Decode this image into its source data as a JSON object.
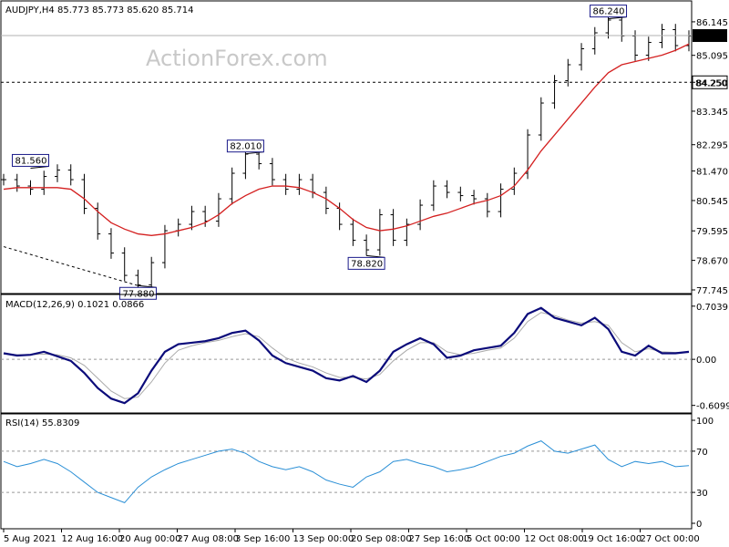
{
  "chart_data": {
    "type": "candlestick",
    "watermark": "ActionForex.com",
    "price_panel": {
      "header": "AUDJPY,H4  85.773 85.773 85.620 85.714",
      "ylim": [
        77.745,
        86.6
      ],
      "yticks": [
        "86.145",
        "85.095",
        "84.250",
        "83.345",
        "82.295",
        "81.470",
        "80.545",
        "79.595",
        "78.670",
        "77.745"
      ],
      "last_price": "85.714",
      "support_level": {
        "value": 84.25,
        "label": "84.250"
      },
      "callouts": [
        {
          "text": "81.560",
          "value": 81.56
        },
        {
          "text": "77.880",
          "value": 77.88
        },
        {
          "text": "82.010",
          "value": 82.01
        },
        {
          "text": "78.820",
          "value": 78.82
        },
        {
          "text": "86.240",
          "value": 86.24
        }
      ],
      "close": [
        81.2,
        81.0,
        80.9,
        81.3,
        81.5,
        81.2,
        80.3,
        79.5,
        78.9,
        78.2,
        77.9,
        78.6,
        79.6,
        79.8,
        80.2,
        79.9,
        80.6,
        81.4,
        82.0,
        81.7,
        81.2,
        80.9,
        81.2,
        80.8,
        80.3,
        79.8,
        79.3,
        79.0,
        80.1,
        79.3,
        79.8,
        80.4,
        81.0,
        80.8,
        80.7,
        80.6,
        80.2,
        80.9,
        81.4,
        82.6,
        83.6,
        84.3,
        84.8,
        85.3,
        85.8,
        86.2,
        85.7,
        85.1,
        85.5,
        85.9,
        85.4,
        85.7
      ],
      "ma": [
        80.9,
        80.95,
        80.95,
        80.95,
        80.95,
        80.9,
        80.6,
        80.2,
        79.85,
        79.65,
        79.5,
        79.45,
        79.5,
        79.6,
        79.7,
        79.85,
        80.1,
        80.45,
        80.7,
        80.9,
        81.0,
        81.0,
        80.95,
        80.8,
        80.6,
        80.3,
        79.95,
        79.7,
        79.6,
        79.65,
        79.75,
        79.9,
        80.05,
        80.15,
        80.3,
        80.45,
        80.55,
        80.7,
        81.0,
        81.5,
        82.1,
        82.6,
        83.1,
        83.6,
        84.1,
        84.55,
        84.8,
        84.9,
        85.0,
        85.1,
        85.25,
        85.45
      ],
      "trend_start": 79.1,
      "trend_end": 77.88
    },
    "macd_panel": {
      "header": "MACD(12,26,9) 0.1021 0.0866",
      "ylim": [
        -0.65,
        0.75
      ],
      "yticks": [
        "0.7039",
        "0.00",
        "-0.6099"
      ],
      "macd": [
        0.08,
        0.05,
        0.06,
        0.1,
        0.04,
        -0.02,
        -0.18,
        -0.38,
        -0.52,
        -0.58,
        -0.45,
        -0.15,
        0.1,
        0.2,
        0.22,
        0.24,
        0.28,
        0.35,
        0.38,
        0.25,
        0.05,
        -0.05,
        -0.1,
        -0.15,
        -0.25,
        -0.28,
        -0.22,
        -0.3,
        -0.15,
        0.1,
        0.2,
        0.28,
        0.2,
        0.02,
        0.05,
        0.12,
        0.15,
        0.18,
        0.35,
        0.6,
        0.68,
        0.55,
        0.5,
        0.45,
        0.55,
        0.4,
        0.1,
        0.05,
        0.18,
        0.08,
        0.08,
        0.1
      ],
      "signal": [
        0.07,
        0.06,
        0.06,
        0.07,
        0.06,
        0.02,
        -0.08,
        -0.25,
        -0.42,
        -0.52,
        -0.5,
        -0.3,
        -0.05,
        0.12,
        0.18,
        0.22,
        0.25,
        0.3,
        0.34,
        0.3,
        0.15,
        0.02,
        -0.05,
        -0.1,
        -0.18,
        -0.24,
        -0.24,
        -0.26,
        -0.2,
        -0.02,
        0.12,
        0.22,
        0.22,
        0.1,
        0.06,
        0.08,
        0.12,
        0.15,
        0.28,
        0.5,
        0.62,
        0.58,
        0.52,
        0.48,
        0.5,
        0.45,
        0.22,
        0.1,
        0.14,
        0.1,
        0.09,
        0.09
      ]
    },
    "rsi_panel": {
      "header": "RSI(14) 55.8309",
      "ylim": [
        0,
        100
      ],
      "yticks": [
        "100",
        "70",
        "30",
        "0"
      ],
      "levels": [
        70,
        30
      ],
      "values": [
        60,
        55,
        58,
        62,
        58,
        50,
        40,
        30,
        25,
        20,
        35,
        45,
        52,
        58,
        62,
        66,
        70,
        72,
        68,
        60,
        55,
        52,
        55,
        50,
        42,
        38,
        35,
        45,
        50,
        60,
        62,
        58,
        55,
        50,
        52,
        55,
        60,
        65,
        68,
        75,
        80,
        70,
        68,
        72,
        76,
        62,
        55,
        60,
        58,
        60,
        55,
        56
      ]
    },
    "x_tick_labels": [
      "5 Aug 2021",
      "12 Aug 16:00",
      "20 Aug 00:00",
      "27 Aug 08:00",
      "3 Sep 16:00",
      "13 Sep 00:00",
      "20 Sep 08:00",
      "27 Sep 16:00",
      "5 Oct 00:00",
      "12 Oct 08:00",
      "19 Oct 16:00",
      "27 Oct 00:00"
    ]
  }
}
